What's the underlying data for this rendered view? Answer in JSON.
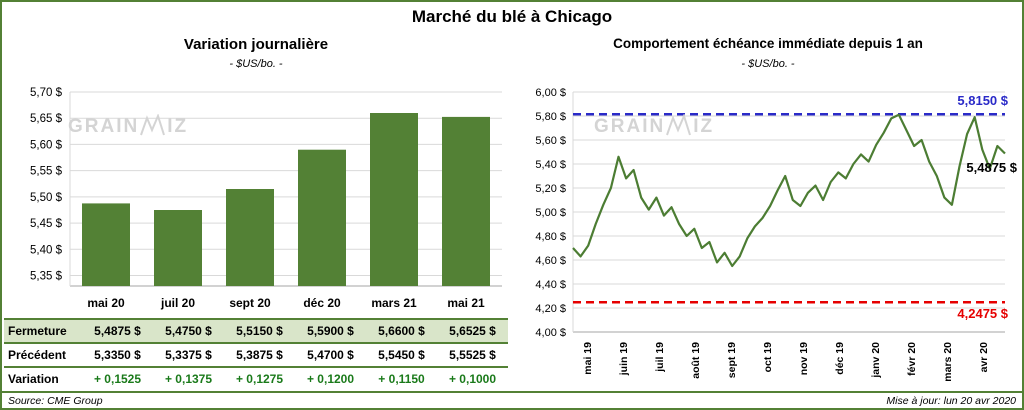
{
  "header": {
    "title": "Marché du blé à Chicago"
  },
  "footer": {
    "source": "Source: CME Group",
    "updated": "Mise à jour: lun 20 avr 2020"
  },
  "watermark": {
    "left": "GRAIN",
    "right": "IZ"
  },
  "colors": {
    "green": "#538135",
    "row_highlight": "#d9e5c9",
    "variation_text": "#1a7a1a",
    "gridline": "#d9d9d9",
    "axis": "#a6a6a6",
    "blue": "#2a2ac8",
    "red": "#e60000"
  },
  "chart_data": [
    {
      "type": "bar",
      "title": "Variation journalière",
      "subtitle": "- $US/bo. -",
      "categories": [
        "mai 20",
        "juil 20",
        "sept 20",
        "déc 20",
        "mars 21",
        "mai 21"
      ],
      "values": [
        5.4875,
        5.475,
        5.515,
        5.59,
        5.66,
        5.6525
      ],
      "ylim": [
        5.33,
        5.7
      ],
      "yticks": [
        5.7,
        5.65,
        5.6,
        5.55,
        5.5,
        5.45,
        5.4,
        5.35
      ],
      "bar_color": "#538135",
      "grid": true,
      "table": {
        "rows": [
          {
            "label": "Fermeture",
            "values": [
              "5,4875  $",
              "5,4750  $",
              "5,5150  $",
              "5,5900  $",
              "5,6600  $",
              "5,6525  $"
            ]
          },
          {
            "label": "Précédent",
            "values": [
              "5,3350  $",
              "5,3375  $",
              "5,3875  $",
              "5,4700  $",
              "5,5450  $",
              "5,5525  $"
            ]
          },
          {
            "label": "Variation",
            "values": [
              "+ 0,1525",
              "+ 0,1375",
              "+ 0,1275",
              "+ 0,1200",
              "+ 0,1150",
              "+ 0,1000"
            ]
          }
        ]
      }
    },
    {
      "type": "line",
      "title": "Comportement échéance immédiate depuis 1 an",
      "subtitle": "- $US/bo. -",
      "x_labels": [
        "mai 19",
        "juin 19",
        "juil 19",
        "août 19",
        "sept 19",
        "oct 19",
        "nov 19",
        "déc 19",
        "janv 20",
        "févr 20",
        "mars 20",
        "avr 20"
      ],
      "values": [
        4.7,
        4.63,
        4.72,
        4.9,
        5.06,
        5.2,
        5.46,
        5.28,
        5.35,
        5.12,
        5.02,
        5.12,
        4.97,
        5.04,
        4.9,
        4.8,
        4.86,
        4.7,
        4.75,
        4.58,
        4.66,
        4.55,
        4.63,
        4.78,
        4.88,
        4.95,
        5.05,
        5.18,
        5.3,
        5.1,
        5.05,
        5.16,
        5.22,
        5.1,
        5.25,
        5.33,
        5.28,
        5.4,
        5.48,
        5.42,
        5.56,
        5.66,
        5.78,
        5.81,
        5.68,
        5.55,
        5.6,
        5.42,
        5.3,
        5.12,
        5.06,
        5.38,
        5.65,
        5.79,
        5.52,
        5.36,
        5.55,
        5.4875
      ],
      "ylim": [
        4.0,
        6.0
      ],
      "ytick_step": 0.2,
      "line_color": "#4c7d33",
      "grid": true,
      "legend": "none",
      "annotations": [
        {
          "label": "5,8150 $",
          "value": 5.815,
          "color": "#2a2ac8",
          "style": "dashed"
        },
        {
          "label": "5,4875 $",
          "value": 5.4875,
          "color": "#000000",
          "style": "none"
        },
        {
          "label": "4,2475 $",
          "value": 4.2475,
          "color": "#e60000",
          "style": "dashed"
        }
      ]
    }
  ]
}
